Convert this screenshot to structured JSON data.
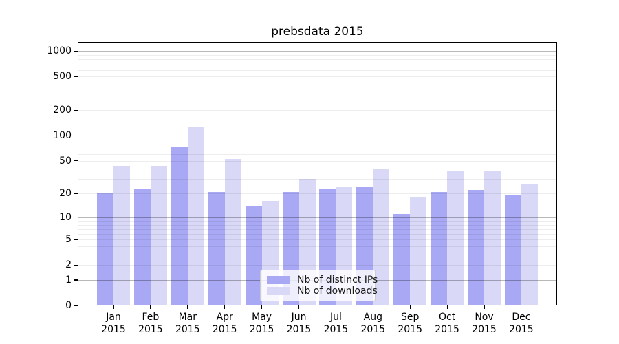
{
  "chart_data": {
    "type": "bar",
    "title": "prebsdata 2015",
    "categories": [
      "Jan 2015",
      "Feb 2015",
      "Mar 2015",
      "Apr 2015",
      "May 2015",
      "Jun 2015",
      "Jul 2015",
      "Aug 2015",
      "Sep 2015",
      "Oct 2015",
      "Nov 2015",
      "Dec 2015"
    ],
    "series": [
      {
        "name": "Nb of distinct IPs",
        "color": "#a8a8f4",
        "values": [
          20,
          23,
          74,
          21,
          14,
          21,
          23,
          24,
          11,
          21,
          22,
          19
        ]
      },
      {
        "name": "Nb of downloads",
        "color": "#d9d9f7",
        "values": [
          43,
          43,
          125,
          53,
          16,
          30,
          24,
          40,
          18,
          38,
          37,
          26
        ]
      }
    ],
    "xlabel": "",
    "ylabel": "",
    "yscale": "log1p",
    "y_ticks": [
      1000,
      500,
      200,
      100,
      50,
      20,
      10,
      5,
      2,
      1,
      0
    ],
    "ylim": [
      0,
      1285
    ],
    "grid": "on",
    "legend_position": "inside lower center"
  },
  "colors": {
    "background": "#ffffff",
    "major_grid": "#b8b8b8",
    "minor_grid": "#ececec",
    "axis": "#000000"
  }
}
